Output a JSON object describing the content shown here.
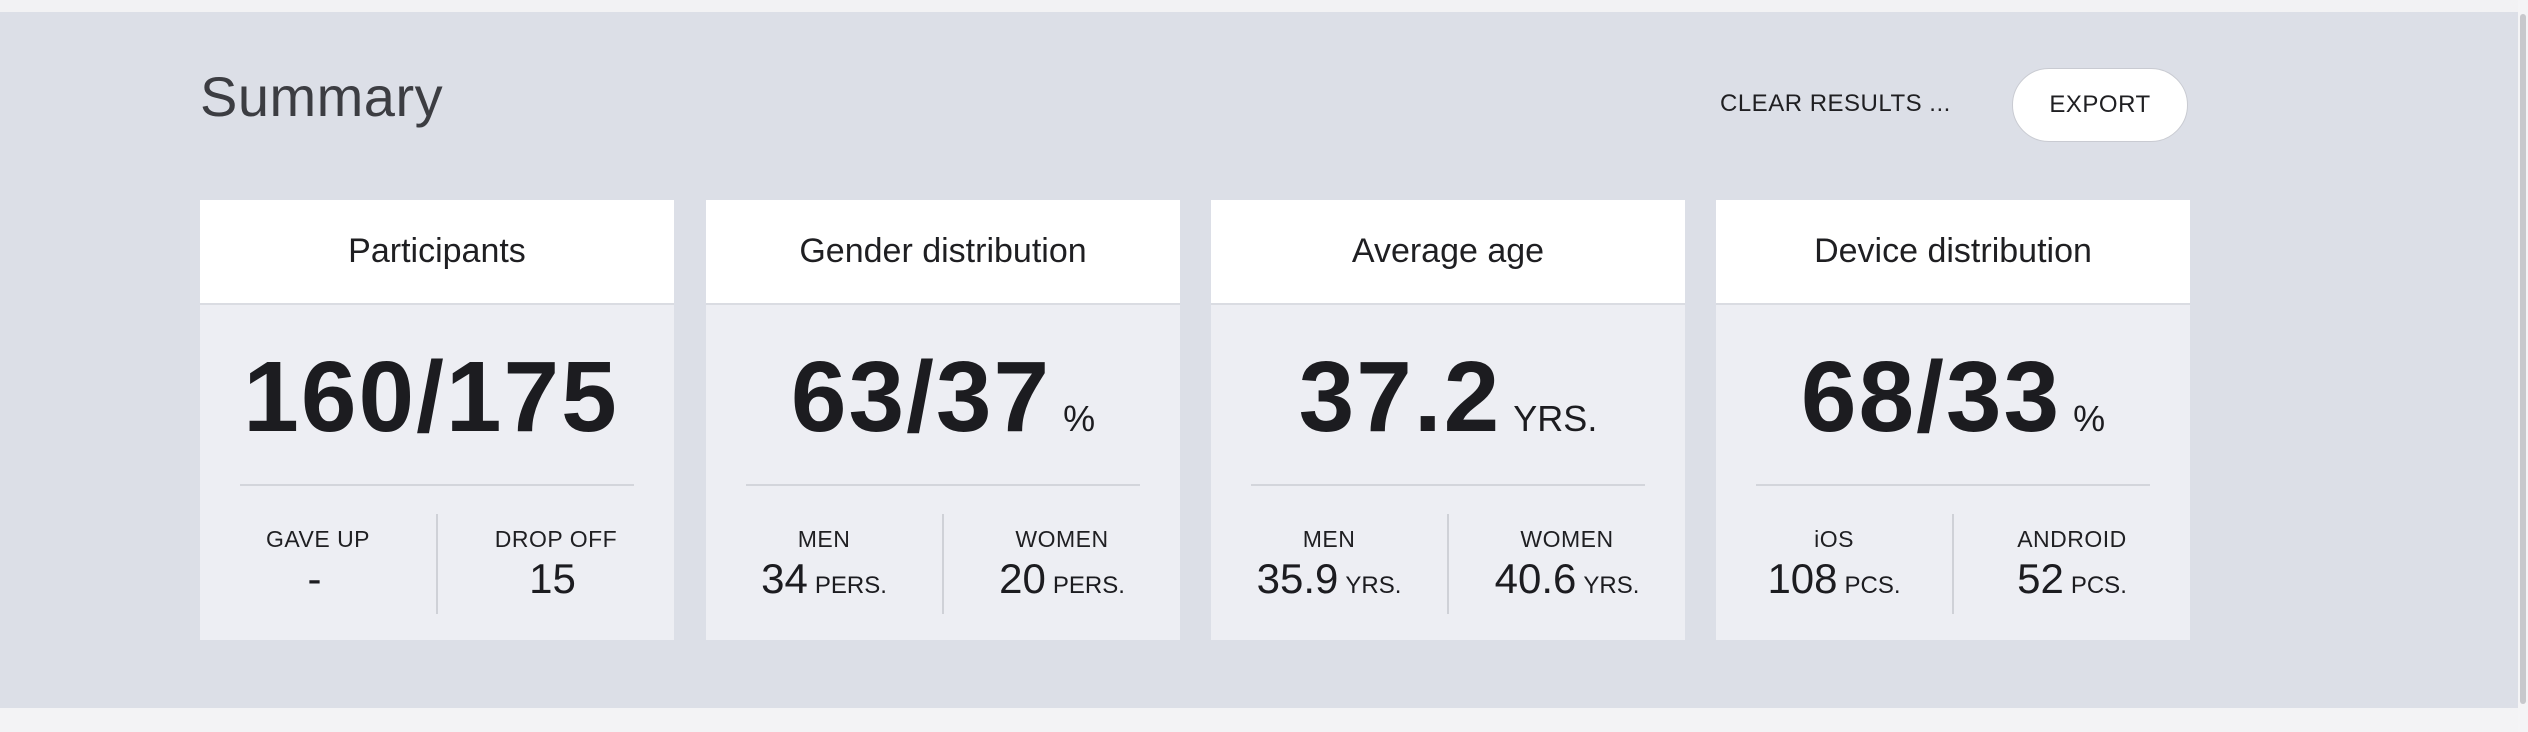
{
  "header": {
    "title": "Summary",
    "clear_label": "CLEAR RESULTS ...",
    "export_label": "EXPORT"
  },
  "cards": [
    {
      "title": "Participants",
      "value": "160/175",
      "unit": "",
      "left": {
        "label": "GAVE UP",
        "value": "-",
        "unit": ""
      },
      "right": {
        "label": "DROP OFF",
        "value": "15",
        "unit": ""
      }
    },
    {
      "title": "Gender distribution",
      "value": "63/37",
      "unit": "%",
      "left": {
        "label": "MEN",
        "value": "34",
        "unit": "PERS."
      },
      "right": {
        "label": "WOMEN",
        "value": "20",
        "unit": "PERS."
      }
    },
    {
      "title": "Average age",
      "value": "37.2",
      "unit": "YRS.",
      "left": {
        "label": "MEN",
        "value": "35.9",
        "unit": "YRS."
      },
      "right": {
        "label": "WOMEN",
        "value": "40.6",
        "unit": "YRS."
      }
    },
    {
      "title": "Device distribution",
      "value": "68/33",
      "unit": "%",
      "left": {
        "label": "iOS",
        "value": "108",
        "unit": "PCS."
      },
      "right": {
        "label": "ANDROID",
        "value": "52",
        "unit": "PCS."
      }
    }
  ]
}
